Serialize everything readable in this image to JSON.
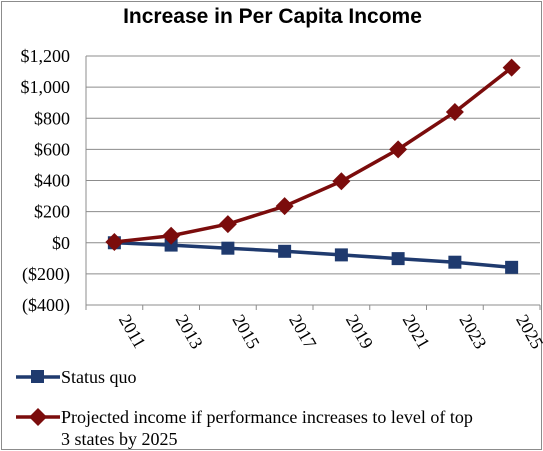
{
  "chart_data": {
    "type": "line",
    "title": "Increase in Per Capita Income",
    "xlabel": "",
    "ylabel": "",
    "categories": [
      "2011",
      "2013",
      "2015",
      "2017",
      "2019",
      "2021",
      "2023",
      "2025"
    ],
    "y_ticks": [
      "$1,200",
      "$1,000",
      "$800",
      "$600",
      "$400",
      "$200",
      "$0",
      "($200)",
      "($400)"
    ],
    "ylim": [
      -400,
      1200
    ],
    "grid": true,
    "legend_position": "bottom",
    "series": [
      {
        "name": "Status quo",
        "color": "#1f3a6e",
        "marker": "square",
        "values": [
          0,
          -15,
          -35,
          -55,
          -78,
          -102,
          -125,
          -158
        ]
      },
      {
        "name": "Projected income if performance increases to level of top 3 states by 2025",
        "color": "#7b0c0c",
        "marker": "diamond",
        "values": [
          5,
          45,
          120,
          235,
          395,
          600,
          840,
          1125
        ]
      }
    ]
  },
  "legend": {
    "line1": "Status quo",
    "line2a": "Projected income if performance increases to level of top",
    "line2b": "3 states by 2025"
  }
}
